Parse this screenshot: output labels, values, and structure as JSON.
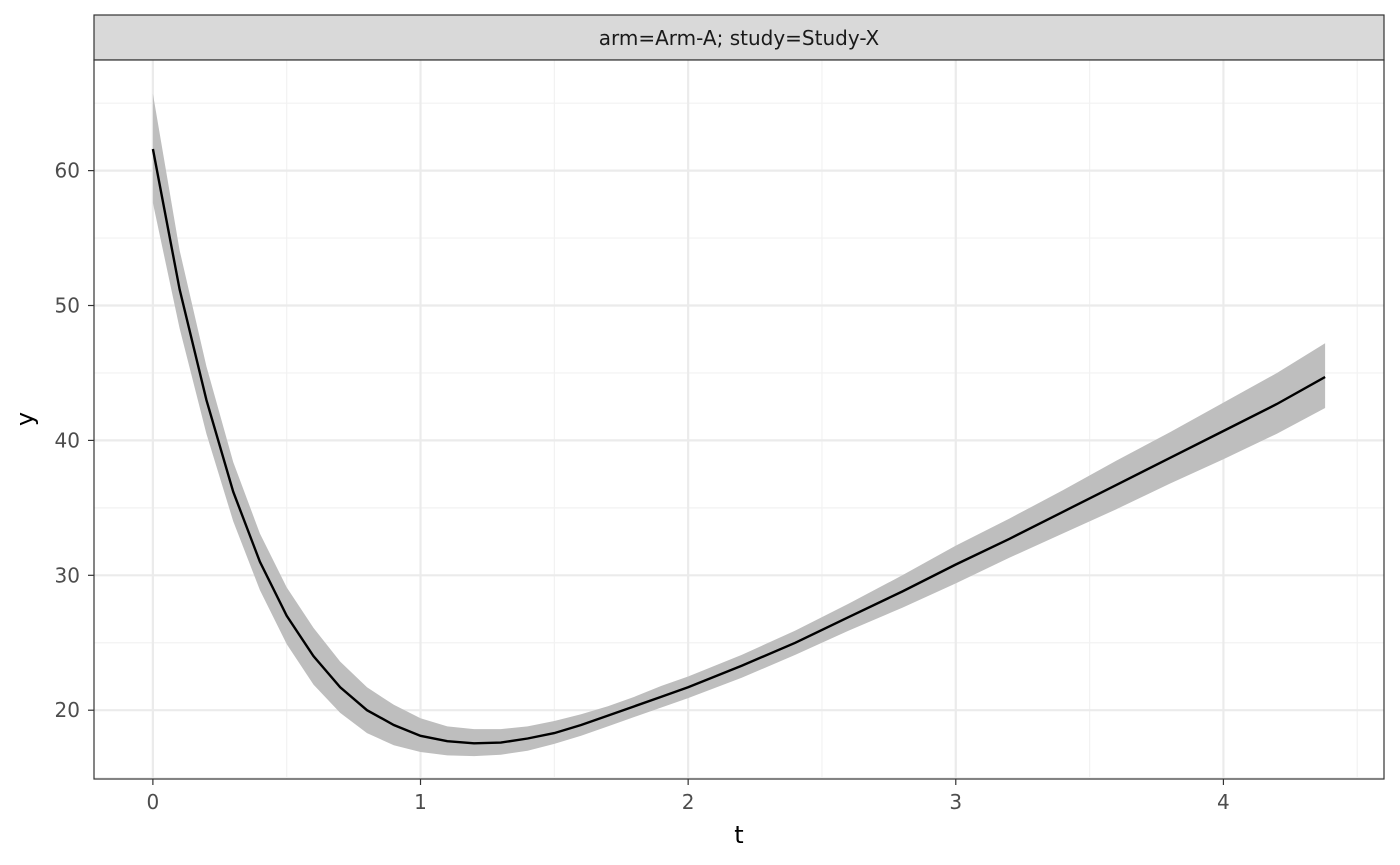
{
  "chart_data": {
    "type": "line",
    "facet_label": "arm=Arm-A; study=Study-X",
    "xlabel": "t",
    "ylabel": "y",
    "xlim": [
      -0.22,
      4.6
    ],
    "ylim": [
      14.9,
      68.2
    ],
    "x_ticks": [
      0,
      1,
      2,
      3,
      4
    ],
    "y_ticks": [
      20,
      30,
      40,
      50,
      60
    ],
    "x_minor_ticks": [
      0.5,
      1.5,
      2.5,
      3.5,
      4.5
    ],
    "y_minor_ticks": [
      15,
      25,
      35,
      45,
      55,
      65
    ],
    "grid": true,
    "series": [
      {
        "x": [
          0,
          0.1,
          0.2,
          0.3,
          0.4,
          0.5,
          0.6,
          0.7,
          0.8,
          0.9,
          1.0,
          1.1,
          1.2,
          1.3,
          1.4,
          1.5,
          1.6,
          1.7,
          1.8,
          1.9,
          2.0,
          2.2,
          2.4,
          2.6,
          2.8,
          3.0,
          3.2,
          3.4,
          3.6,
          3.8,
          4.0,
          4.2,
          4.38
        ],
        "y": [
          61.6,
          51.2,
          43.0,
          36.2,
          31.0,
          27.0,
          24.0,
          21.7,
          20.0,
          18.9,
          18.1,
          17.7,
          17.55,
          17.6,
          17.9,
          18.3,
          18.9,
          19.6,
          20.3,
          21.0,
          21.7,
          23.3,
          25.0,
          26.9,
          28.8,
          30.8,
          32.7,
          34.7,
          36.7,
          38.7,
          40.7,
          42.7,
          44.7
        ],
        "lower": [
          57.6,
          48.3,
          40.5,
          34.0,
          28.9,
          24.9,
          21.9,
          19.8,
          18.3,
          17.4,
          16.9,
          16.65,
          16.6,
          16.7,
          17.0,
          17.5,
          18.1,
          18.8,
          19.5,
          20.2,
          20.9,
          22.4,
          24.1,
          25.9,
          27.6,
          29.4,
          31.3,
          33.1,
          34.9,
          36.8,
          38.6,
          40.5,
          42.4
        ],
        "upper": [
          65.7,
          54.1,
          45.5,
          38.4,
          33.1,
          29.1,
          26.1,
          23.6,
          21.7,
          20.4,
          19.4,
          18.8,
          18.6,
          18.6,
          18.8,
          19.2,
          19.7,
          20.3,
          21.0,
          21.8,
          22.5,
          24.1,
          25.9,
          27.9,
          30.0,
          32.2,
          34.2,
          36.3,
          38.5,
          40.6,
          42.8,
          45.0,
          47.2
        ]
      }
    ]
  }
}
